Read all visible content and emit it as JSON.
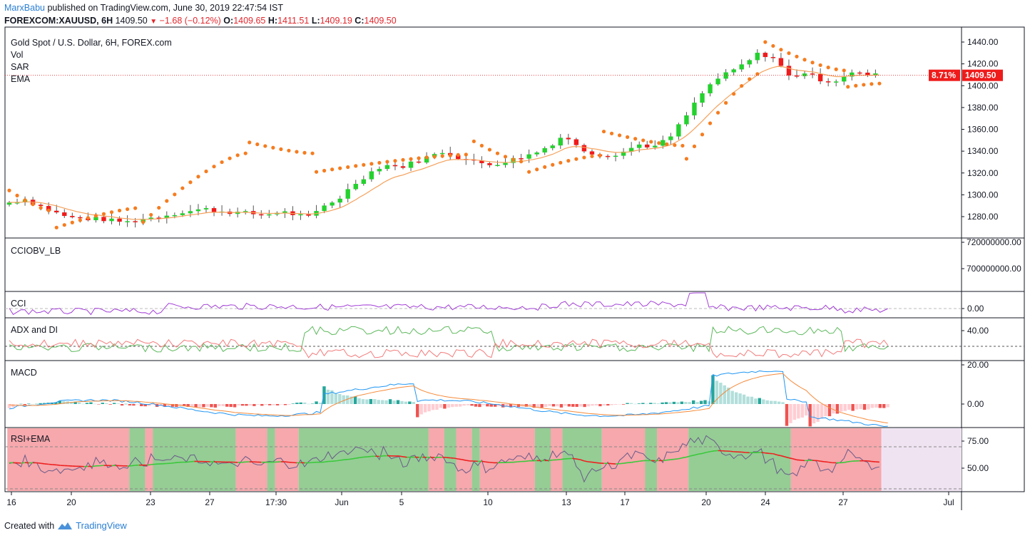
{
  "header": {
    "author": "MarxBabu",
    "published_text": "published on TradingView.com, June 30, 2019 22:47:54 IST",
    "symbol": "FOREXCOM:XAUUSD, 6H",
    "last": "1409.50",
    "change": "−1.68 (−0.12%)",
    "open_label": "O:",
    "open": "1409.65",
    "high_label": "H:",
    "high": "1411.51",
    "low_label": "L:",
    "low": "1409.19",
    "close_label": "C:",
    "close": "1409.50"
  },
  "footer": {
    "created_with": "Created with",
    "brand": "TradingView"
  },
  "colors": {
    "up": "#25d12f",
    "down": "#ef1b1b",
    "sar": "#f57c1f",
    "ema": "#f5a05a",
    "cci": "#a23fd6",
    "adx": "#5cb85c",
    "di_minus": "#f27b7b",
    "macd": "#2196f3",
    "signal": "#f58a3a",
    "rsi": "#6b5b8a",
    "rsi_ema_up": "#3ac93a",
    "rsi_ema_down": "#ee2020"
  },
  "chart_data": [
    {
      "type": "candlestick",
      "title": "Gold Spot / U.S. Dollar, 6H, FOREX.com",
      "indicators": [
        "Vol",
        "SAR",
        "EMA"
      ],
      "ylim": [
        1260,
        1450
      ],
      "y_ticks": [
        "1440.00",
        "1420.00",
        "1400.00",
        "1380.00",
        "1360.00",
        "1340.00",
        "1320.00",
        "1300.00",
        "1280.00"
      ],
      "x_ticks": [
        "16",
        "20",
        "23",
        "27",
        "17:30",
        "Jun",
        "5",
        "10",
        "13",
        "17",
        "20",
        "24",
        "27",
        "Jul"
      ],
      "last_price": "1409.50",
      "last_pct": "8.71%",
      "close_anchors": [
        1293,
        1296,
        1290,
        1284,
        1279,
        1278,
        1278,
        1276,
        1275,
        1278,
        1280,
        1283,
        1285,
        1287,
        1285,
        1284,
        1283,
        1281,
        1285,
        1282,
        1279,
        1290,
        1297,
        1310,
        1320,
        1328,
        1325,
        1330,
        1335,
        1340,
        1334,
        1330,
        1328,
        1330,
        1334,
        1338,
        1345,
        1355,
        1342,
        1338,
        1336,
        1340,
        1346,
        1344,
        1352,
        1370,
        1390,
        1405,
        1412,
        1420,
        1430,
        1425,
        1408,
        1412,
        1406,
        1404,
        1412,
        1410,
        1409.5
      ],
      "sar_series": [
        {
          "from": 0,
          "to": 11,
          "start": 1304,
          "end": 1285
        },
        {
          "from": 12,
          "to": 33,
          "start": 1270,
          "end": 1288
        },
        {
          "from": 34,
          "to": 60,
          "start": 1275,
          "end": 1338
        },
        {
          "from": 61,
          "to": 77,
          "start": 1348,
          "end": 1338
        },
        {
          "from": 78,
          "to": 117,
          "start": 1321,
          "end": 1337
        },
        {
          "from": 118,
          "to": 131,
          "start": 1349,
          "end": 1330
        },
        {
          "from": 132,
          "to": 150,
          "start": 1321,
          "end": 1336
        },
        {
          "from": 151,
          "to": 171,
          "start": 1358,
          "end": 1345
        },
        {
          "from": 172,
          "to": 191,
          "start": 1333,
          "end": 1412
        },
        {
          "from": 192,
          "to": 212,
          "start": 1440,
          "end": 1414
        },
        {
          "from": 213,
          "to": 221,
          "start": 1399,
          "end": 1402
        }
      ]
    },
    {
      "type": "line",
      "title": "CCIOBV_LB",
      "y_ticks": [
        "720000000.00",
        "700000000.00"
      ]
    },
    {
      "type": "line",
      "title": "CCI",
      "y_ticks": [
        "0.00"
      ]
    },
    {
      "type": "line",
      "title": "ADX and DI",
      "y_ticks": [
        "40.00"
      ]
    },
    {
      "type": "bar",
      "title": "MACD",
      "y_ticks": [
        "20.00",
        "0.00"
      ]
    },
    {
      "type": "line",
      "title": "RSI+EMA",
      "y_ticks": [
        "75.00",
        "50.00"
      ],
      "zones": [
        {
          "from": 0,
          "to": 30,
          "state": "down"
        },
        {
          "from": 31,
          "to": 34,
          "state": "up"
        },
        {
          "from": 35,
          "to": 36,
          "state": "down"
        },
        {
          "from": 37,
          "to": 57,
          "state": "up"
        },
        {
          "from": 58,
          "to": 65,
          "state": "down"
        },
        {
          "from": 66,
          "to": 67,
          "state": "up"
        },
        {
          "from": 68,
          "to": 73,
          "state": "down"
        },
        {
          "from": 74,
          "to": 106,
          "state": "up"
        },
        {
          "from": 107,
          "to": 110,
          "state": "down"
        },
        {
          "from": 111,
          "to": 113,
          "state": "up"
        },
        {
          "from": 114,
          "to": 117,
          "state": "down"
        },
        {
          "from": 118,
          "to": 119,
          "state": "up"
        },
        {
          "from": 120,
          "to": 133,
          "state": "down"
        },
        {
          "from": 134,
          "to": 137,
          "state": "up"
        },
        {
          "from": 138,
          "to": 140,
          "state": "down"
        },
        {
          "from": 141,
          "to": 150,
          "state": "up"
        },
        {
          "from": 151,
          "to": 161,
          "state": "down"
        },
        {
          "from": 162,
          "to": 164,
          "state": "up"
        },
        {
          "from": 165,
          "to": 172,
          "state": "down"
        },
        {
          "from": 173,
          "to": 198,
          "state": "up"
        },
        {
          "from": 199,
          "to": 221,
          "state": "down"
        }
      ]
    }
  ]
}
